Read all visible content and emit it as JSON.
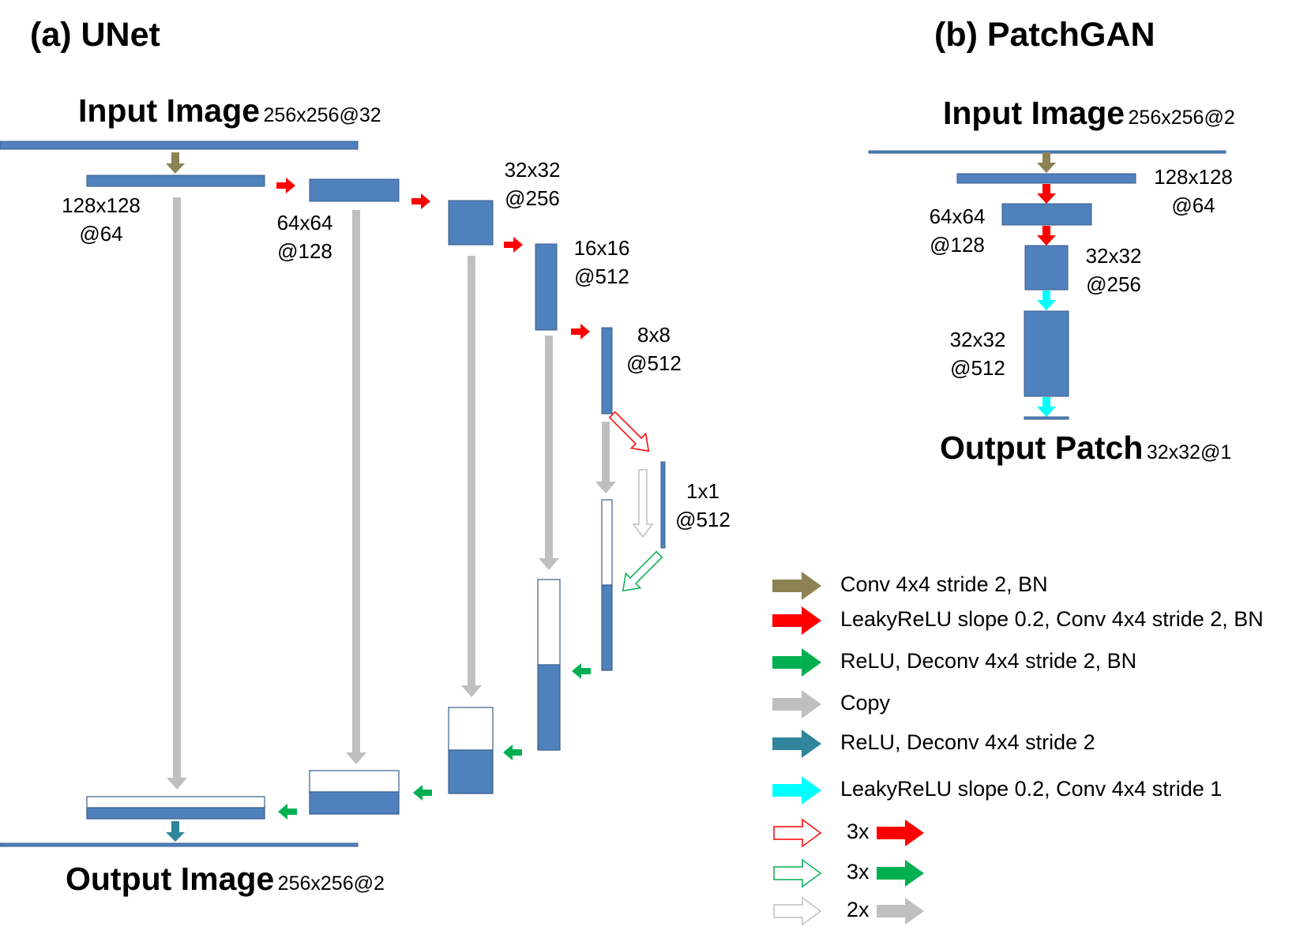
{
  "unet": {
    "title": "(a) UNet",
    "input_label": "Input Image",
    "input_dims": "256x256@32",
    "output_label": "Output Image",
    "output_dims": "256x256@2",
    "layers": [
      {
        "size": "128x128",
        "channels": "@64"
      },
      {
        "size": "64x64",
        "channels": "@128"
      },
      {
        "size": "32x32",
        "channels": "@256"
      },
      {
        "size": "16x16",
        "channels": "@512"
      },
      {
        "size": "8x8",
        "channels": "@512"
      },
      {
        "size": "1x1",
        "channels": "@512"
      }
    ]
  },
  "patchgan": {
    "title": "(b) PatchGAN",
    "input_label": "Input Image",
    "input_dims": "256x256@2",
    "output_label": "Output Patch",
    "output_dims": "32x32@1",
    "layers": [
      {
        "size": "128x128",
        "channels": "@64"
      },
      {
        "size": "64x64",
        "channels": "@128"
      },
      {
        "size": "32x32",
        "channels": "@256"
      },
      {
        "size": "32x32",
        "channels": "@512"
      }
    ]
  },
  "legend": [
    {
      "label": "Conv 4x4 stride 2, BN",
      "color": "#8c8253"
    },
    {
      "label": "LeakyReLU slope 0.2, Conv 4x4 stride 2, BN",
      "color": "#ff0000"
    },
    {
      "label": "ReLU, Deconv 4x4 stride 2, BN",
      "color": "#00b050"
    },
    {
      "label": "Copy",
      "color": "#bfbfbf"
    },
    {
      "label": "ReLU, Deconv 4x4 stride 2",
      "color": "#31859c"
    },
    {
      "label": "LeakyReLU slope 0.2, Conv 4x4 stride 1",
      "color": "#00ffff"
    }
  ],
  "repeat_legend": [
    {
      "count": "3x",
      "color": "#ff0000"
    },
    {
      "count": "3x",
      "color": "#00b050"
    },
    {
      "count": "2x",
      "color": "#bfbfbf"
    }
  ],
  "colors": {
    "block": "#4f81bd",
    "block_border": "#385d8a"
  }
}
